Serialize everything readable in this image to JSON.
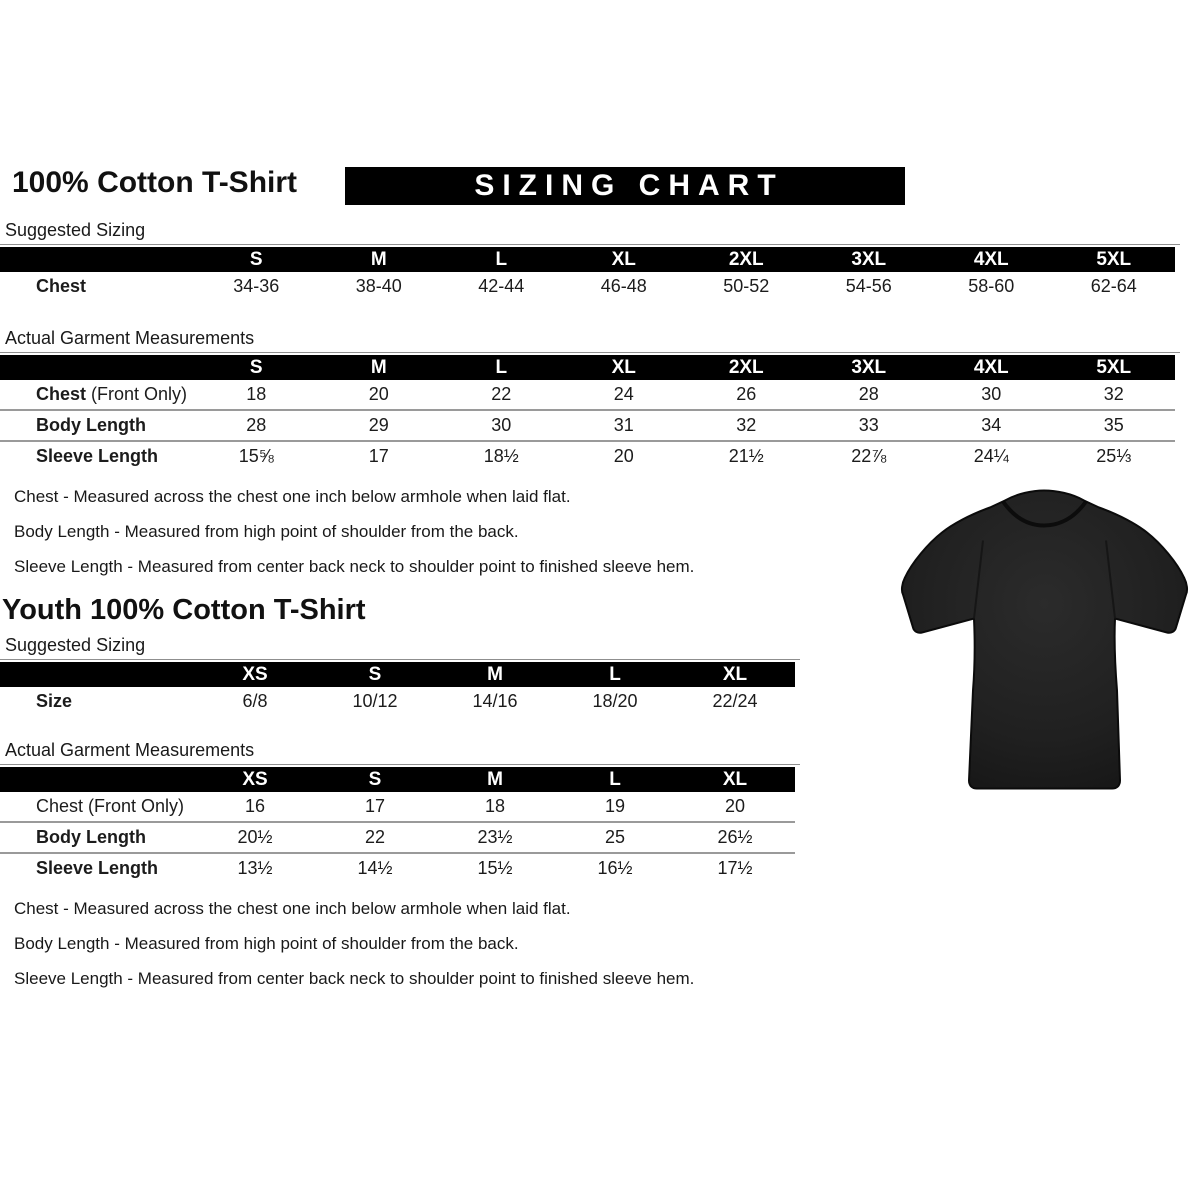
{
  "header": {
    "title": "100% Cotton T-Shirt",
    "banner": "SIZING CHART"
  },
  "labels": {
    "suggested": "Suggested Sizing",
    "actual": "Actual Garment Measurements"
  },
  "adult": {
    "suggested_table": {
      "columns": [
        "S",
        "M",
        "L",
        "XL",
        "2XL",
        "3XL",
        "4XL",
        "5XL"
      ],
      "rows": [
        {
          "label": "Chest",
          "suffix": "",
          "bold": true,
          "values": [
            "34-36",
            "38-40",
            "42-44",
            "46-48",
            "50-52",
            "54-56",
            "58-60",
            "62-64"
          ]
        }
      ]
    },
    "actual_table": {
      "columns": [
        "S",
        "M",
        "L",
        "XL",
        "2XL",
        "3XL",
        "4XL",
        "5XL"
      ],
      "rows": [
        {
          "label": "Chest",
          "suffix": " (Front Only)",
          "bold": true,
          "values": [
            "18",
            "20",
            "22",
            "24",
            "26",
            "28",
            "30",
            "32"
          ]
        },
        {
          "label": "Body Length",
          "suffix": "",
          "bold": true,
          "values": [
            "28",
            "29",
            "30",
            "31",
            "32",
            "33",
            "34",
            "35"
          ]
        },
        {
          "label": "Sleeve Length",
          "suffix": "",
          "bold": true,
          "values": [
            "15⅝",
            "17",
            "18½",
            "20",
            "21½",
            "22⅞",
            "24¼",
            "25⅓"
          ]
        }
      ]
    },
    "notes": [
      "Chest - Measured across the chest one inch below armhole when laid flat.",
      "Body Length - Measured from high point of shoulder from the back.",
      "Sleeve Length - Measured from center back neck to shoulder point to finished sleeve hem."
    ]
  },
  "youth": {
    "title": "Youth 100% Cotton T-Shirt",
    "suggested_table": {
      "columns": [
        "XS",
        "S",
        "M",
        "L",
        "XL"
      ],
      "rows": [
        {
          "label": "Size",
          "suffix": "",
          "bold": true,
          "values": [
            "6/8",
            "10/12",
            "14/16",
            "18/20",
            "22/24"
          ]
        }
      ]
    },
    "actual_table": {
      "columns": [
        "XS",
        "S",
        "M",
        "L",
        "XL"
      ],
      "rows": [
        {
          "label": "Chest",
          "suffix": " (Front Only)",
          "bold": false,
          "values": [
            "16",
            "17",
            "18",
            "19",
            "20"
          ]
        },
        {
          "label": "Body Length",
          "suffix": "",
          "bold": true,
          "values": [
            "20½",
            "22",
            "23½",
            "25",
            "26½"
          ]
        },
        {
          "label": "Sleeve Length",
          "suffix": "",
          "bold": true,
          "values": [
            "13½",
            "14½",
            "15½",
            "16½",
            "17½"
          ]
        }
      ]
    },
    "notes": [
      "Chest - Measured across the chest one inch below armhole when laid flat.",
      "Body Length - Measured from high point of shoulder from the back.",
      "Sleeve Length - Measured from center back neck to shoulder point to finished sleeve hem."
    ]
  },
  "tshirt_image": {
    "name": "black-adult-tshirt-photo",
    "shirt_color": "#1f1f1f"
  },
  "colors": {
    "bar_background": "#000000",
    "bar_text": "#ffffff",
    "body_text": "#1c1c1c",
    "row_separator": "#9a9a9a"
  }
}
